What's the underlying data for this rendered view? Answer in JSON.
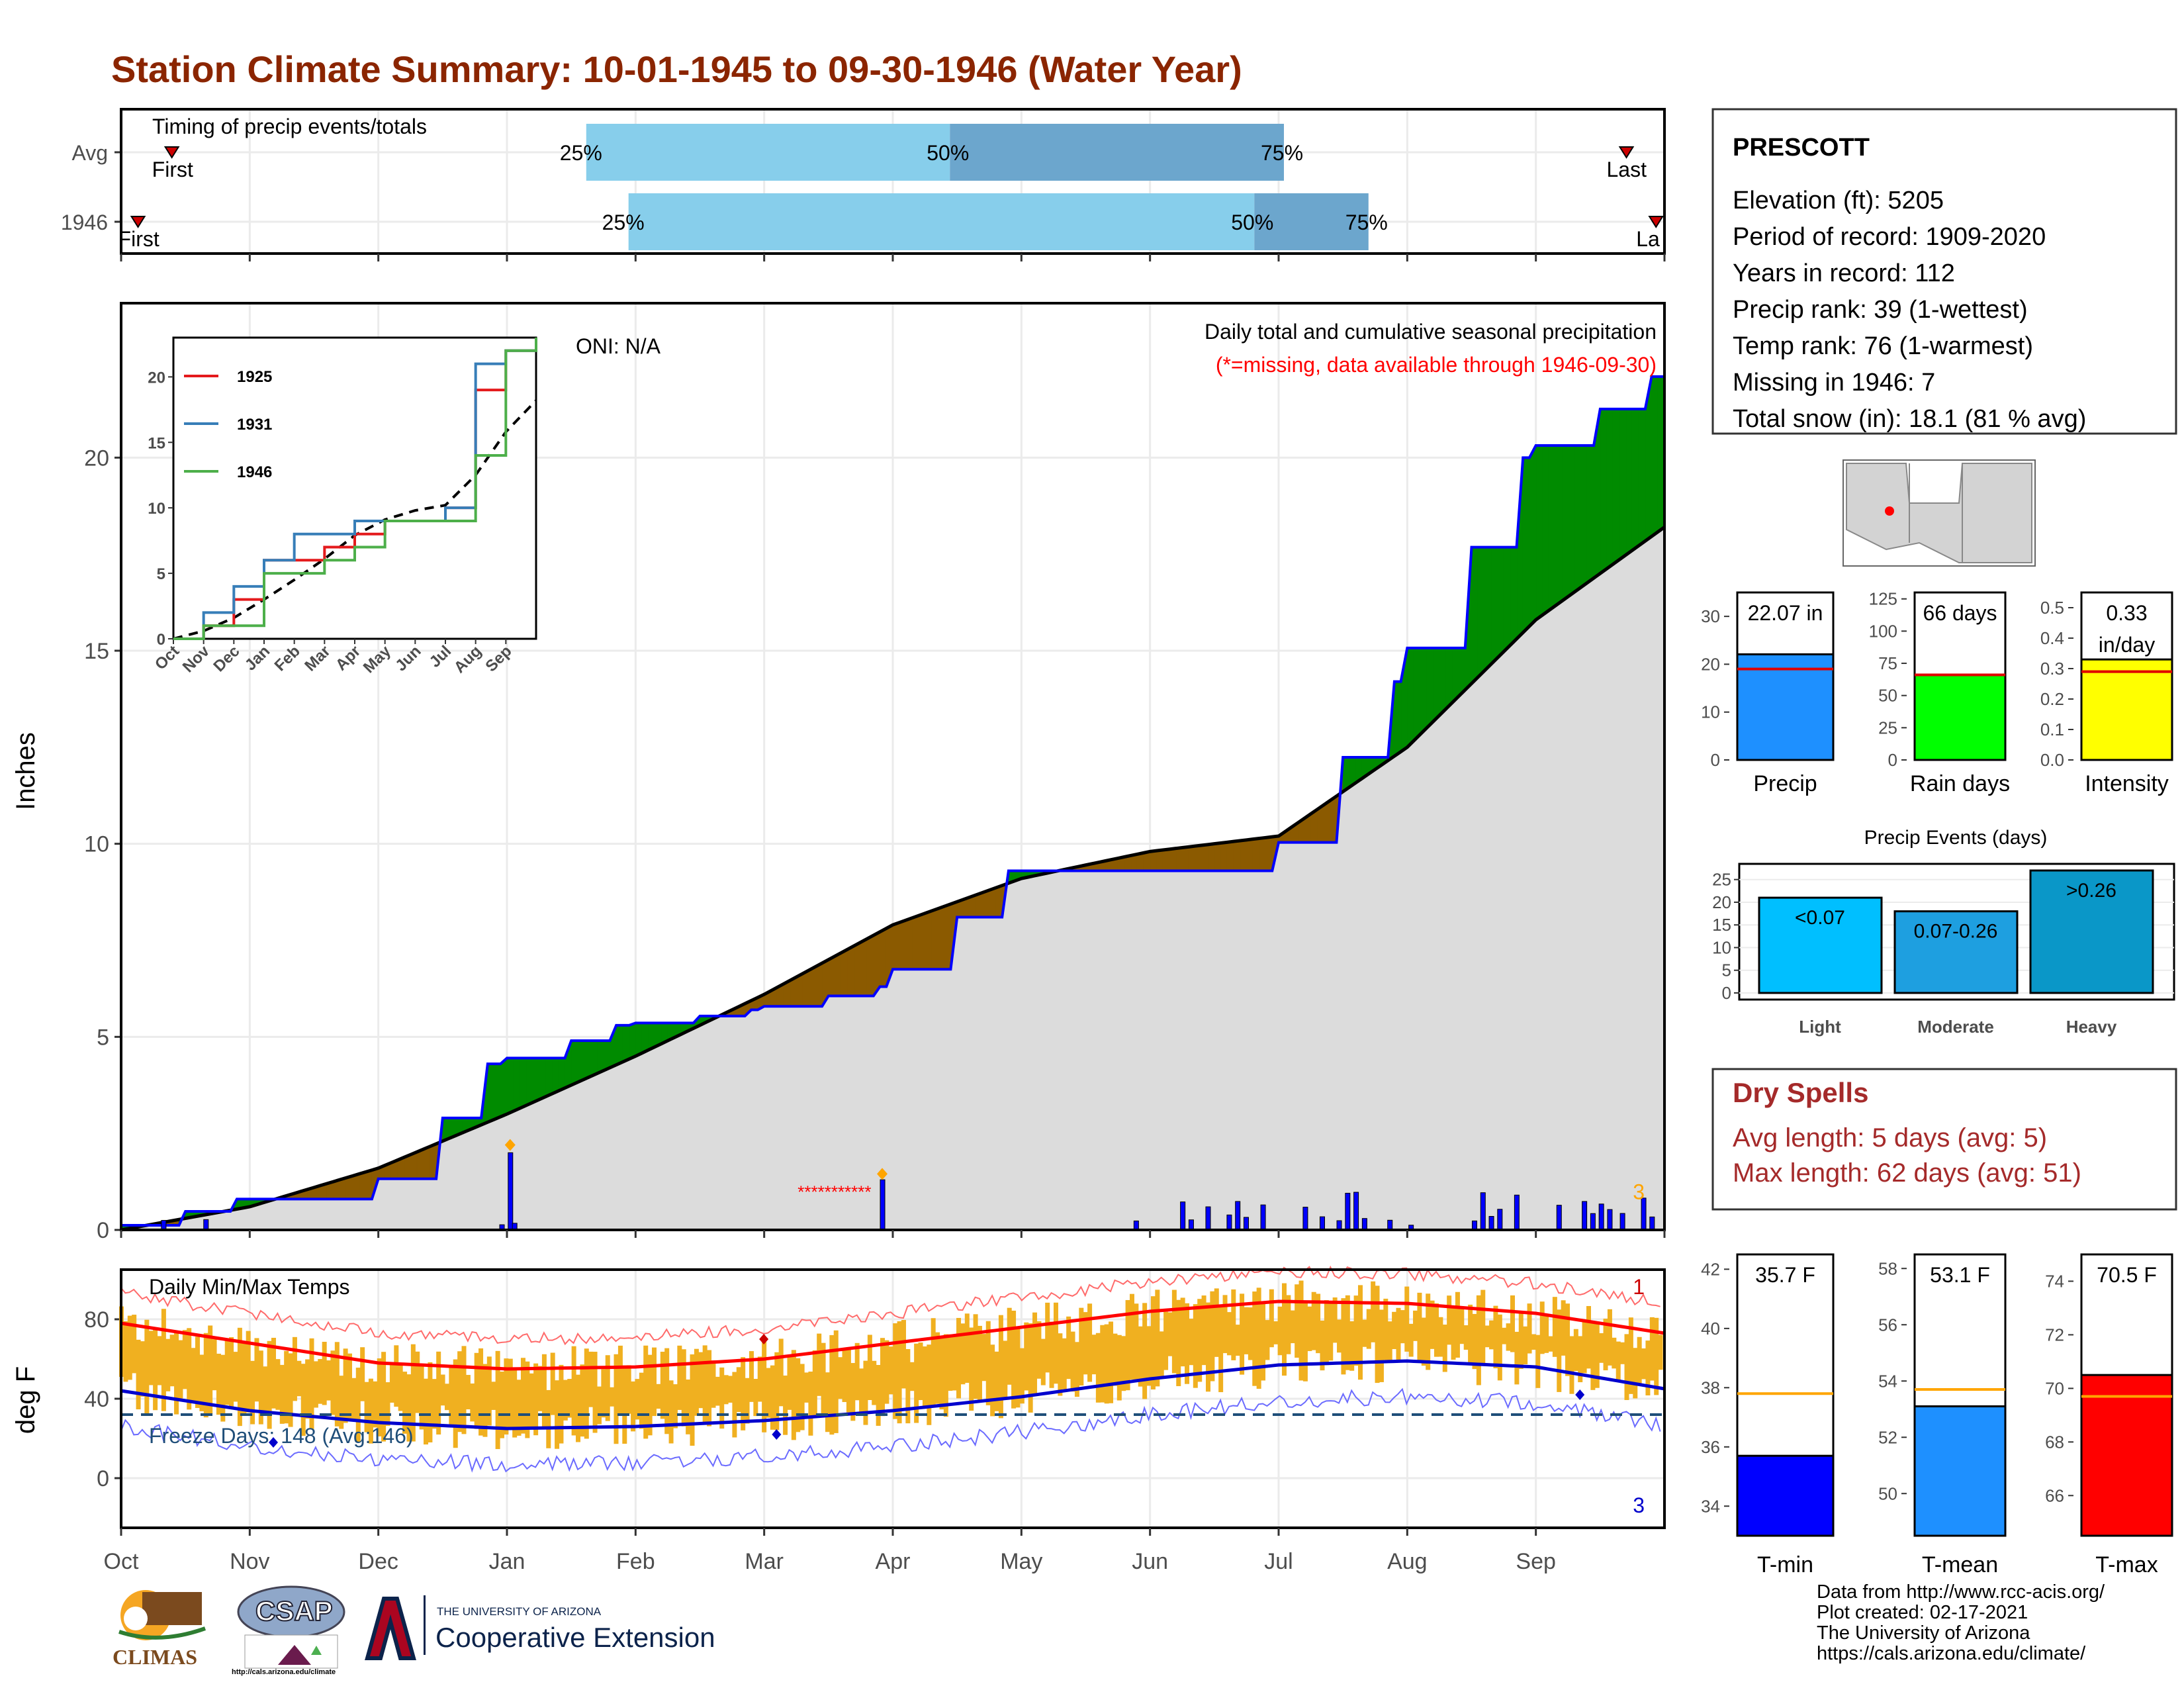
{
  "title": "Station Climate Summary: 10-01-1945 to 09-30-1946 (Water Year)",
  "station": {
    "name": "PRESCOTT",
    "lines": [
      "Elevation (ft): 5205",
      "Period of record: 1909-2020",
      "Years in record: 112",
      "Precip rank: 39 (1-wettest)",
      "Temp rank: 76 (1-warmest)",
      "Missing in 1946: 7",
      "Total snow (in): 18.1 (81 % avg)"
    ]
  },
  "timing": {
    "label": "Timing of precip events/totals",
    "rows": [
      {
        "name": "Avg",
        "first_label": "First",
        "last_label": "Last",
        "first_doy": 12,
        "last_doy": 356,
        "q25": 110,
        "q50": 196,
        "q75": 275,
        "labels": [
          "25%",
          "50%",
          "75%"
        ]
      },
      {
        "name": "1946",
        "first_label": "First",
        "last_label": "La",
        "first_doy": 4,
        "last_doy": 363,
        "q25": 120,
        "q50": 268,
        "q75": 295,
        "labels": [
          "25%",
          "50%",
          "75%"
        ]
      }
    ]
  },
  "precip_panel": {
    "ylabel": "Inches",
    "yticks": [
      0,
      5,
      10,
      15,
      20
    ],
    "ylim": [
      0,
      24
    ],
    "oni": "ONI: N/A",
    "heading": "Daily total and cumulative seasonal precipitation",
    "missing_note": "(*=missing, data available through 1946-09-30)",
    "count_label": "3",
    "missing_marks": "***********"
  },
  "inset": {
    "yticks": [
      "0",
      "5",
      "10",
      "15",
      "20"
    ],
    "xticks": [
      "Oct",
      "Nov",
      "Dec",
      "Jan",
      "Feb",
      "Mar",
      "Apr",
      "May",
      "Jun",
      "Jul",
      "Aug",
      "Sep"
    ],
    "legend": [
      "1925",
      "1931",
      "1946"
    ],
    "colors": [
      "#e41a1c",
      "#377eb8",
      "#4daf4a"
    ]
  },
  "temp_panel": {
    "ylabel": "deg F",
    "title": "Daily Min/Max Temps",
    "freeze": "Freeze Days: 148 (Avg:146)",
    "yticks": [
      0,
      40,
      80
    ],
    "top_count": "1",
    "bottom_count": "3"
  },
  "months": [
    "Oct",
    "Nov",
    "Dec",
    "Jan",
    "Feb",
    "Mar",
    "Apr",
    "May",
    "Jun",
    "Jul",
    "Aug",
    "Sep"
  ],
  "precip_bars": {
    "yticks": [
      "0",
      "10",
      "20",
      "30"
    ],
    "value": "22.07 in",
    "label": "Precip"
  },
  "raindays_bars": {
    "yticks": [
      "0",
      "25",
      "50",
      "75",
      "100",
      "125"
    ],
    "value": "66 days",
    "label": "Rain days"
  },
  "intensity_bars": {
    "yticks": [
      "0.0",
      "0.1",
      "0.2",
      "0.3",
      "0.4",
      "0.5"
    ],
    "value": "0.33",
    "value_unit": "in/day",
    "label": "Intensity"
  },
  "events": {
    "title": "Precip Events (days)",
    "yticks": [
      "0",
      "5",
      "10",
      "15",
      "20",
      "25"
    ],
    "categories": [
      "Light",
      "Moderate",
      "Heavy"
    ],
    "bar_labels": [
      "<0.07",
      "0.07-0.26",
      ">0.26"
    ]
  },
  "dry_spells": {
    "title": "Dry Spells",
    "avg": "Avg length: 5 days (avg: 5)",
    "max": "Max length: 62 days (avg: 51)"
  },
  "tmin": {
    "yticks": [
      "34",
      "36",
      "38",
      "40",
      "42"
    ],
    "value": "35.7 F",
    "label": "T-min"
  },
  "tmean": {
    "yticks": [
      "50",
      "52",
      "54",
      "56",
      "58"
    ],
    "value": "53.1 F",
    "label": "T-mean"
  },
  "tmax": {
    "yticks": [
      "66",
      "68",
      "70",
      "72",
      "74"
    ],
    "value": "70.5 F",
    "label": "T-max"
  },
  "logos": {
    "climas": "CLIMAS",
    "csap": "CSAP",
    "csap_url": "http://cals.arizona.edu/climate",
    "ua_small": "THE UNIVERSITY OF ARIZONA",
    "ua_big": "Cooperative Extension"
  },
  "footer": [
    "Data from http://www.rcc-acis.org/",
    "Plot created: 02-17-2021",
    "The University of Arizona",
    "https://cals.arizona.edu/climate/"
  ],
  "chart_data": [
    {
      "type": "area",
      "title": "Daily total and cumulative seasonal precipitation",
      "ylabel": "Inches",
      "ylim": [
        0,
        24
      ],
      "series": [
        {
          "name": "",
          "x": [
            "Oct",
            "Nov",
            "Dec",
            "Jan",
            "Feb",
            "Mar",
            "Apr",
            "May",
            "Jun",
            "Jul",
            "Aug",
            "Sep",
            "end"
          ],
          "values": [
            0.0,
            0.8,
            0.8,
            4.3,
            5.3,
            5.7,
            6.3,
            9.3,
            9.3,
            9.3,
            14.2,
            20.0,
            22.1
          ]
        },
        {
          "name": "",
          "x": [
            "Oct",
            "Nov",
            "Dec",
            "Jan",
            "Feb",
            "Mar",
            "Apr",
            "May",
            "Jun",
            "Jul",
            "Aug",
            "Sep",
            "end"
          ],
          "values": [
            0.0,
            0.6,
            1.6,
            3.0,
            4.5,
            6.1,
            7.9,
            9.1,
            9.8,
            10.2,
            12.5,
            15.8,
            18.2
          ]
        }
      ]
    },
    {
      "type": "line",
      "title": "",
      "categories": [
        "Oct",
        "Nov",
        "Dec",
        "Jan",
        "Feb",
        "Mar",
        "Apr",
        "May",
        "Jun",
        "Jul",
        "Aug",
        "Sep",
        "end"
      ],
      "ylim": [
        0,
        23
      ],
      "series": [
        {
          "name": "1925",
          "values": [
            0,
            1,
            3,
            6,
            6,
            7,
            8,
            9,
            9,
            10,
            19,
            22,
            23
          ]
        },
        {
          "name": "1931",
          "values": [
            0,
            2,
            4,
            6,
            8,
            8,
            9,
            9,
            9,
            10,
            21,
            22,
            23
          ]
        },
        {
          "name": "1946",
          "values": [
            0,
            1,
            1,
            5,
            5,
            6,
            7,
            9,
            9,
            9,
            14,
            22,
            23
          ]
        }
      ]
    },
    {
      "type": "line",
      "title": "Daily Min/Max Temps",
      "ylabel": "deg F",
      "categories": [
        "Oct",
        "Nov",
        "Dec",
        "Jan",
        "Feb",
        "Mar",
        "Apr",
        "May",
        "Jun",
        "Jul",
        "Aug",
        "Sep",
        "end"
      ],
      "series": [
        {
          "name": "",
          "values": [
            78,
            68,
            58,
            55,
            56,
            60,
            68,
            76,
            84,
            89,
            88,
            83,
            73
          ]
        },
        {
          "name": "",
          "values": [
            44,
            34,
            28,
            25,
            26,
            29,
            34,
            41,
            50,
            57,
            59,
            56,
            45
          ]
        }
      ]
    },
    {
      "type": "bar",
      "categories": [
        "Precip"
      ],
      "values": [
        22.07
      ],
      "avg": 19,
      "ylim": [
        0,
        35
      ]
    },
    {
      "type": "bar",
      "categories": [
        "Rain days"
      ],
      "values": [
        66
      ],
      "avg": 66,
      "ylim": [
        0,
        130
      ]
    },
    {
      "type": "bar",
      "categories": [
        "Intensity"
      ],
      "values": [
        0.33
      ],
      "avg": 0.29,
      "ylim": [
        0,
        0.55
      ]
    },
    {
      "type": "bar",
      "title": "Precip Events (days)",
      "categories": [
        "Light",
        "Moderate",
        "Heavy"
      ],
      "values": [
        21,
        18,
        27
      ],
      "ylim": [
        0,
        27
      ]
    },
    {
      "type": "bar",
      "categories": [
        "T-min"
      ],
      "values": [
        35.7
      ],
      "avg": 37.8,
      "ylim": [
        33,
        42.5
      ]
    },
    {
      "type": "bar",
      "categories": [
        "T-mean"
      ],
      "values": [
        53.1
      ],
      "avg": 53.7,
      "ylim": [
        48.5,
        58.5
      ]
    },
    {
      "type": "bar",
      "categories": [
        "T-max"
      ],
      "values": [
        70.5
      ],
      "avg": 69.7,
      "ylim": [
        64.5,
        75
      ]
    }
  ]
}
